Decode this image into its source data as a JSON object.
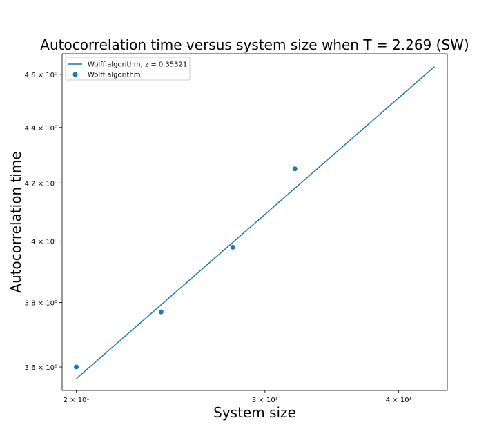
{
  "chart_data": {
    "type": "scatter",
    "title": "Autocorrelation time versus system size when T = 2.269 (SW)",
    "xlabel": "System size",
    "ylabel": "Autocorrelation time",
    "xscale": "log",
    "yscale": "log",
    "xlim": [
      19.4,
      44.4
    ],
    "ylim": [
      3.53,
      4.68
    ],
    "grid": false,
    "legend_position": "top-left",
    "x_ticks": [
      {
        "value": 20,
        "label": "2 × 10¹"
      },
      {
        "value": 30,
        "label": "3 × 10¹"
      },
      {
        "value": 40,
        "label": "4 × 10¹"
      }
    ],
    "y_ticks": [
      {
        "value": 3.6,
        "label": "3.6 × 10⁰"
      },
      {
        "value": 3.8,
        "label": "3.8 × 10⁰"
      },
      {
        "value": 4.0,
        "label": "4 × 10⁰"
      },
      {
        "value": 4.2,
        "label": "4.2 × 10⁰"
      },
      {
        "value": 4.4,
        "label": "4.4 × 10⁰"
      },
      {
        "value": 4.6,
        "label": "4.6 × 10⁰"
      }
    ],
    "series": [
      {
        "name": "Wolff algorithm, z = 0.35321",
        "kind": "line",
        "color": "#1f77b4",
        "x": [
          20,
          43.2
        ],
        "y": [
          3.565,
          4.63
        ]
      },
      {
        "name": "Wolff algorithm",
        "kind": "scatter",
        "color": "#1f77b4",
        "x": [
          20,
          24,
          28,
          32
        ],
        "y": [
          3.6,
          3.77,
          3.98,
          4.25
        ]
      }
    ]
  }
}
